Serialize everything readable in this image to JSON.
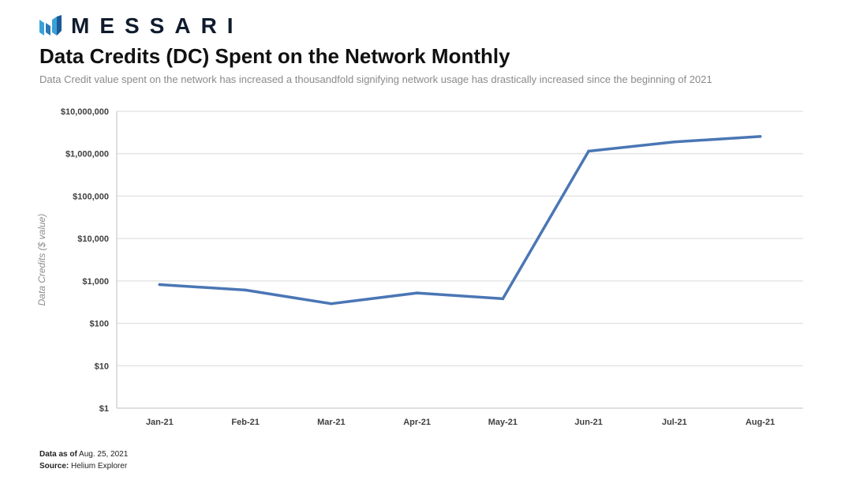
{
  "brand": {
    "name": "MESSARI",
    "accent": "#3aa0d8",
    "dark": "#0f1b2d"
  },
  "header": {
    "title": "Data Credits (DC) Spent on the Network Monthly",
    "subtitle": "Data Credit value spent  on the network has increased a thousandfold signifying network usage has drastically increased since the beginning of 2021"
  },
  "footer": {
    "data_as_of_label": "Data as of",
    "data_as_of_value": "Aug. 25, 2021",
    "source_label": "Source:",
    "source_value": "Helium Explorer"
  },
  "chart_data": {
    "type": "line",
    "categories": [
      "Jan-21",
      "Feb-21",
      "Mar-21",
      "Apr-21",
      "May-21",
      "Jun-21",
      "Jul-21",
      "Aug-21"
    ],
    "series": [
      {
        "color": "#4a76b5",
        "values": [
          820,
          610,
          290,
          520,
          380,
          1150000,
          1900000,
          2550000
        ]
      }
    ],
    "ylabel": "Data Credits ($ value)",
    "xlabel": "",
    "yscale": "log",
    "ylim": [
      1,
      10000000
    ],
    "yticks": [
      1,
      10,
      100,
      1000,
      10000,
      100000,
      1000000,
      10000000
    ],
    "ytick_labels": [
      "$1",
      "$10",
      "$100",
      "$1,000",
      "$10,000",
      "$100,000",
      "$1,000,000",
      "$10,000,000"
    ],
    "grid": true,
    "legend": "none"
  }
}
